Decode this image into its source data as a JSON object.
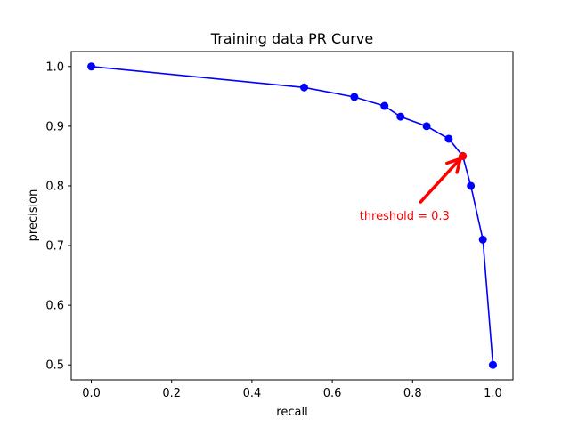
{
  "chart_data": {
    "type": "line",
    "title": "Training data PR Curve",
    "xlabel": "recall",
    "ylabel": "precision",
    "xlim": [
      -0.05,
      1.05
    ],
    "ylim": [
      0.475,
      1.025
    ],
    "xticks": [
      0.0,
      0.2,
      0.4,
      0.6,
      0.8,
      1.0
    ],
    "xtick_labels": [
      "0.0",
      "0.2",
      "0.4",
      "0.6",
      "0.8",
      "1.0"
    ],
    "yticks": [
      0.5,
      0.6,
      0.7,
      0.8,
      0.9,
      1.0
    ],
    "ytick_labels": [
      "0.5",
      "0.6",
      "0.7",
      "0.8",
      "0.9",
      "1.0"
    ],
    "grid": false,
    "series": [
      {
        "color": "#0000ff",
        "marker": "circle",
        "points": [
          {
            "x": 0.0,
            "y": 1.0
          },
          {
            "x": 0.53,
            "y": 0.965
          },
          {
            "x": 0.655,
            "y": 0.949
          },
          {
            "x": 0.73,
            "y": 0.934
          },
          {
            "x": 0.77,
            "y": 0.916
          },
          {
            "x": 0.835,
            "y": 0.9
          },
          {
            "x": 0.89,
            "y": 0.879
          },
          {
            "x": 0.925,
            "y": 0.85
          },
          {
            "x": 0.945,
            "y": 0.8
          },
          {
            "x": 0.975,
            "y": 0.71
          },
          {
            "x": 1.0,
            "y": 0.5
          }
        ]
      }
    ],
    "highlight": {
      "x": 0.925,
      "y": 0.85,
      "color": "#ff0000"
    },
    "annotation": {
      "text": "threshold = 0.3",
      "color": "#ff0000",
      "text_x": 0.78,
      "text_y": 0.75,
      "arrow_from": {
        "x": 0.82,
        "y": 0.773
      },
      "arrow_to": {
        "x": 0.925,
        "y": 0.85
      }
    }
  }
}
